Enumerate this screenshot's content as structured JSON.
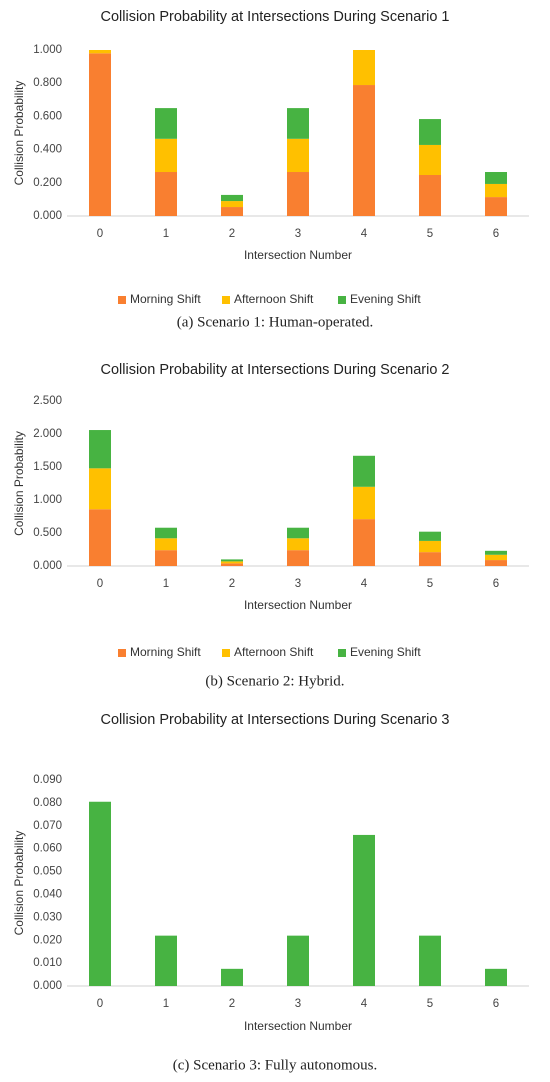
{
  "chart_data": [
    {
      "type": "stacked_bar",
      "title": "Collision Probability at Intersections During Scenario 1",
      "x_label": "Intersection Number",
      "y_label": "Collision Probability",
      "caption": "(a) Scenario 1: Human-operated.",
      "categories": [
        "0",
        "1",
        "2",
        "3",
        "4",
        "5",
        "6"
      ],
      "series": [
        {
          "name": "Morning Shift",
          "color": "#f97f30",
          "values": [
            0.98,
            0.265,
            0.054,
            0.265,
            0.789,
            0.247,
            0.114
          ]
        },
        {
          "name": "Afternoon Shift",
          "color": "#ffc000",
          "values": [
            0.02,
            0.2,
            0.036,
            0.2,
            0.211,
            0.181,
            0.079
          ]
        },
        {
          "name": "Evening Shift",
          "color": "#47b342",
          "values": [
            0,
            0.185,
            0.037,
            0.185,
            0,
            0.156,
            0.072
          ]
        }
      ],
      "ylim": [
        0,
        1
      ],
      "yticks": [
        {
          "value": 0,
          "label": "0.000"
        },
        {
          "value": 0.2,
          "label": "0.200"
        },
        {
          "value": 0.4,
          "label": "0.400"
        },
        {
          "value": 0.6,
          "label": "0.600"
        },
        {
          "value": 0.8,
          "label": "0.800"
        },
        {
          "value": 1,
          "label": "1.000"
        }
      ],
      "legend": "bottom"
    },
    {
      "type": "stacked_bar",
      "title": "Collision Probability at Intersections During Scenario 2",
      "x_label": "Intersection Number",
      "y_label": "Collision Probability",
      "caption": "(b) Scenario 2: Hybrid.",
      "categories": [
        "0",
        "1",
        "2",
        "3",
        "4",
        "5",
        "6"
      ],
      "series": [
        {
          "name": "Morning Shift",
          "color": "#f97f30",
          "values": [
            0.86,
            0.24,
            0.04,
            0.24,
            0.71,
            0.21,
            0.09
          ]
        },
        {
          "name": "Afternoon Shift",
          "color": "#ffc000",
          "values": [
            0.62,
            0.18,
            0.03,
            0.18,
            0.49,
            0.17,
            0.08
          ]
        },
        {
          "name": "Evening Shift",
          "color": "#47b342",
          "values": [
            0.58,
            0.16,
            0.03,
            0.16,
            0.47,
            0.14,
            0.06
          ]
        }
      ],
      "ylim": [
        0,
        2.5
      ],
      "yticks": [
        {
          "value": 0,
          "label": "0.000"
        },
        {
          "value": 0.5,
          "label": "0.500"
        },
        {
          "value": 1,
          "label": "1.000"
        },
        {
          "value": 1.5,
          "label": "1.500"
        },
        {
          "value": 2,
          "label": "2.000"
        },
        {
          "value": 2.5,
          "label": "2.500"
        }
      ],
      "legend": "bottom"
    },
    {
      "type": "bar",
      "title": "Collision Probability at Intersections During Scenario 3",
      "x_label": "Intersection Number",
      "y_label": "Collision Probability",
      "caption": "(c) Scenario 3: Fully autonomous.",
      "categories": [
        "0",
        "1",
        "2",
        "3",
        "4",
        "5",
        "6"
      ],
      "values": [
        0.0805,
        0.022,
        0.0075,
        0.022,
        0.066,
        0.022,
        0.0075
      ],
      "color": "#47b342",
      "ylim": [
        0,
        0.09
      ],
      "yticks": [
        {
          "value": 0,
          "label": "0.000"
        },
        {
          "value": 0.01,
          "label": "0.010"
        },
        {
          "value": 0.02,
          "label": "0.020"
        },
        {
          "value": 0.03,
          "label": "0.030"
        },
        {
          "value": 0.04,
          "label": "0.040"
        },
        {
          "value": 0.05,
          "label": "0.050"
        },
        {
          "value": 0.06,
          "label": "0.060"
        },
        {
          "value": 0.07,
          "label": "0.070"
        },
        {
          "value": 0.08,
          "label": "0.080"
        },
        {
          "value": 0.09,
          "label": "0.090"
        }
      ]
    }
  ]
}
